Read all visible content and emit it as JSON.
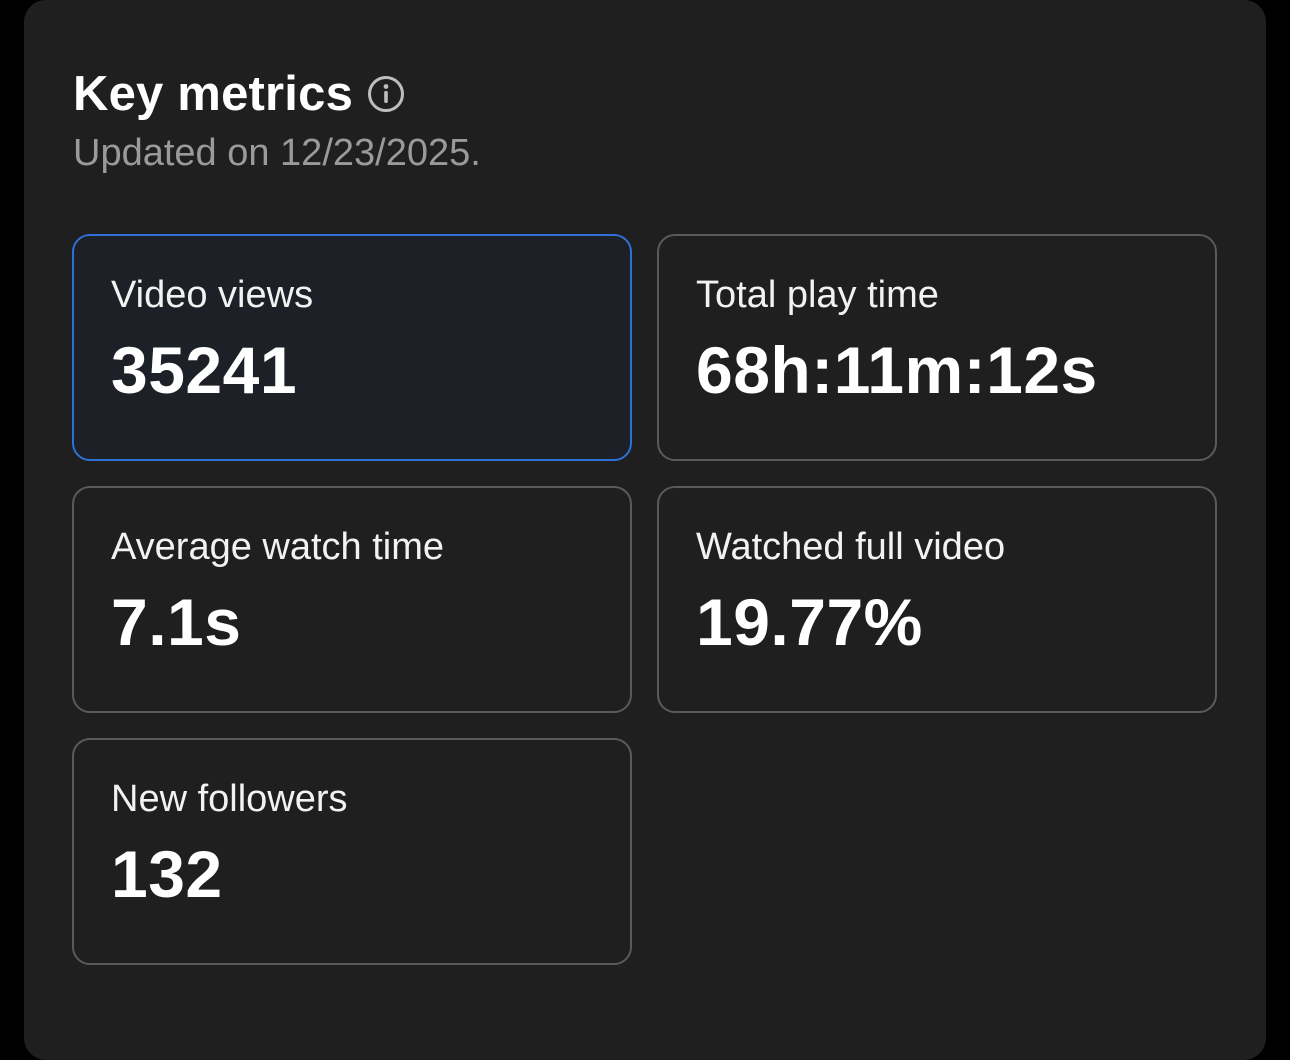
{
  "header": {
    "title": "Key metrics",
    "subtitle": "Updated on 12/23/2025."
  },
  "icons": {
    "info": "info-icon"
  },
  "colors": {
    "panel_background": "#1f1f1f",
    "card_border": "#5a5a5a",
    "active_border": "#2f6fd6",
    "subtitle": "#9a9a9a"
  },
  "metrics": [
    {
      "label": "Video views",
      "value": "35241",
      "selected": true
    },
    {
      "label": "Total play time",
      "value": "68h:11m:12s",
      "selected": false
    },
    {
      "label": "Average watch time",
      "value": "7.1s",
      "selected": false
    },
    {
      "label": "Watched full video",
      "value": "19.77%",
      "selected": false
    },
    {
      "label": "New followers",
      "value": "132",
      "selected": false
    }
  ]
}
